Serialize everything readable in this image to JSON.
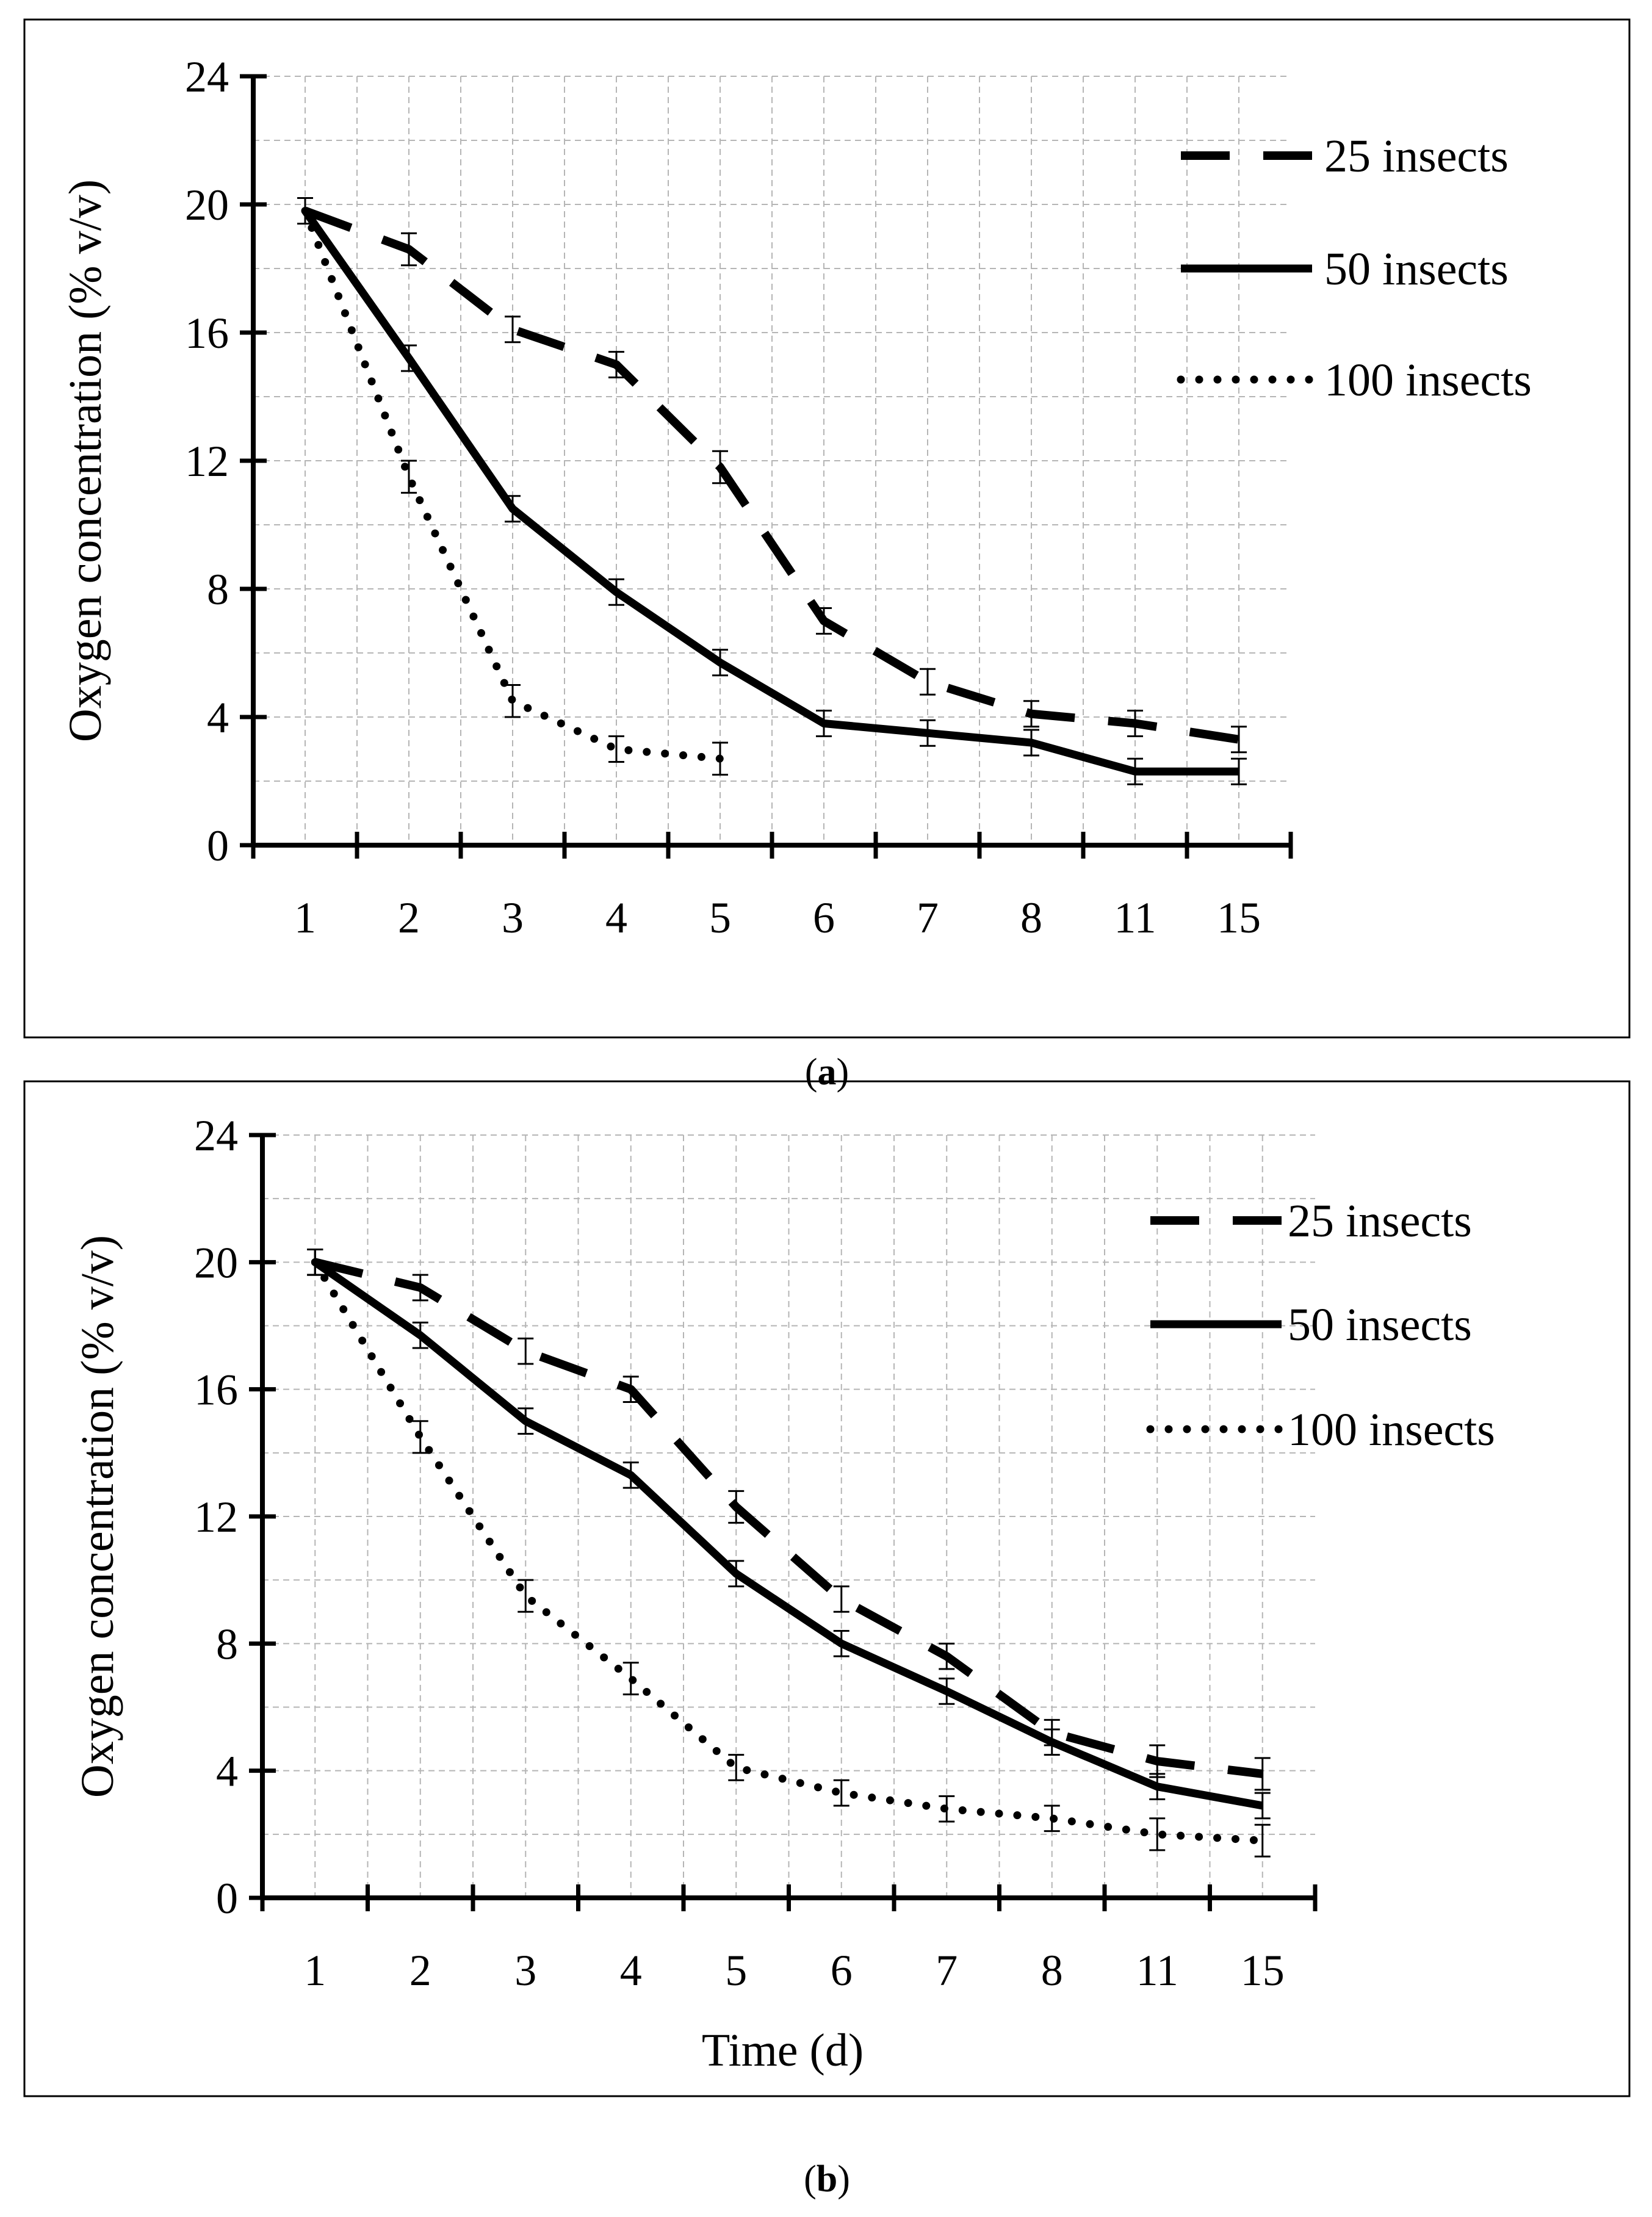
{
  "chart_data": [
    {
      "type": "line",
      "panel": "a",
      "title": "",
      "xlabel": "",
      "ylabel": "Oxygen concentration (% v/v)",
      "categories": [
        "1",
        "2",
        "3",
        "4",
        "5",
        "6",
        "7",
        "8",
        "11",
        "15"
      ],
      "ylim": [
        0,
        24
      ],
      "yticks": [
        "0",
        "4",
        "8",
        "12",
        "16",
        "20",
        "24"
      ],
      "grid": "on",
      "legend_position": "top-right",
      "series": [
        {
          "name": "25 insects",
          "style": "dashed",
          "values": [
            19.8,
            18.6,
            16.1,
            15.0,
            11.8,
            7.0,
            5.1,
            4.1,
            3.8,
            3.3
          ],
          "errors": [
            0.4,
            0.5,
            0.4,
            0.4,
            0.5,
            0.4,
            0.4,
            0.4,
            0.4,
            0.4
          ]
        },
        {
          "name": "50 insects",
          "style": "solid",
          "values": [
            19.8,
            15.2,
            10.5,
            7.9,
            5.7,
            3.8,
            3.5,
            3.2,
            2.3,
            2.3
          ],
          "errors": [
            0.4,
            0.4,
            0.4,
            0.4,
            0.4,
            0.4,
            0.4,
            0.4,
            0.4,
            0.4
          ]
        },
        {
          "name": "100 insects",
          "style": "dotted",
          "values": [
            19.8,
            11.5,
            4.5,
            3.0,
            2.7,
            null,
            null,
            null,
            null,
            null
          ],
          "errors": [
            0.4,
            0.5,
            0.5,
            0.4,
            0.5,
            null,
            null,
            null,
            null,
            null
          ]
        }
      ]
    },
    {
      "type": "line",
      "panel": "b",
      "title": "",
      "xlabel": "Time (d)",
      "ylabel": "Oxygen concentration (% v/v)",
      "categories": [
        "1",
        "2",
        "3",
        "4",
        "5",
        "6",
        "7",
        "8",
        "11",
        "15"
      ],
      "ylim": [
        0,
        24
      ],
      "yticks": [
        "0",
        "4",
        "8",
        "12",
        "16",
        "20",
        "24"
      ],
      "grid": "on",
      "legend_position": "top-right",
      "series": [
        {
          "name": "25 insects",
          "style": "dashed",
          "values": [
            20.0,
            19.2,
            17.2,
            16.0,
            12.3,
            9.4,
            7.6,
            5.2,
            4.3,
            3.9
          ],
          "errors": [
            0.4,
            0.4,
            0.4,
            0.4,
            0.5,
            0.4,
            0.4,
            0.4,
            0.5,
            0.5
          ]
        },
        {
          "name": "50 insects",
          "style": "solid",
          "values": [
            20.0,
            17.7,
            15.0,
            13.3,
            10.2,
            8.0,
            6.5,
            4.9,
            3.5,
            2.9
          ],
          "errors": [
            0.4,
            0.4,
            0.4,
            0.4,
            0.4,
            0.4,
            0.4,
            0.4,
            0.4,
            0.4
          ]
        },
        {
          "name": "100 insects",
          "style": "dotted",
          "values": [
            20.0,
            14.5,
            9.5,
            6.9,
            4.1,
            3.3,
            2.8,
            2.5,
            2.0,
            1.8
          ],
          "errors": [
            0.4,
            0.5,
            0.5,
            0.5,
            0.4,
            0.4,
            0.4,
            0.4,
            0.5,
            0.5
          ]
        }
      ]
    }
  ],
  "panel_labels": [
    "a",
    "b"
  ]
}
